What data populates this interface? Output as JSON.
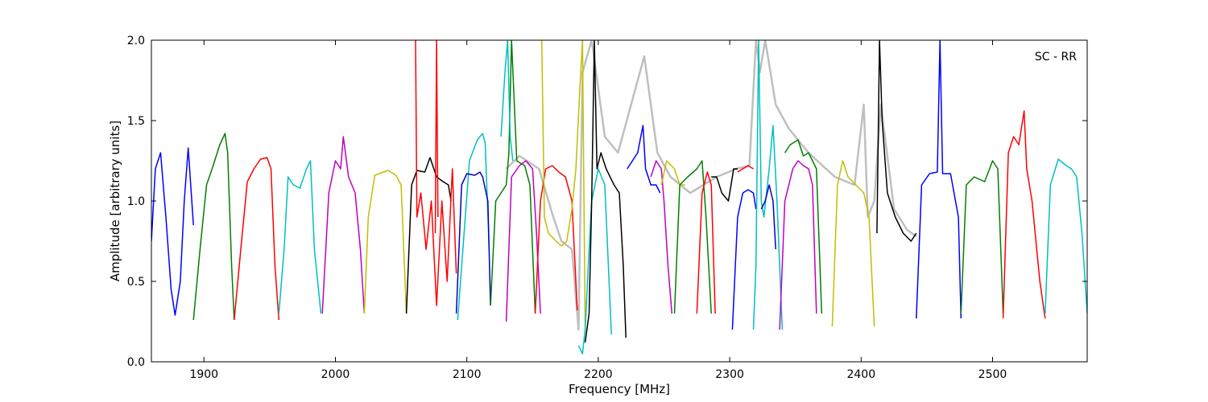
{
  "chart_data": {
    "type": "line",
    "title": "",
    "annotation": "SC - RR",
    "xlabel": "Frequency [MHz]",
    "ylabel": "Amplitude [arbitrary units]",
    "xlim": [
      1860,
      2572
    ],
    "ylim": [
      0.0,
      2.0
    ],
    "xticks": [
      1900,
      2000,
      2100,
      2200,
      2300,
      2400,
      2500
    ],
    "xtick_labels": [
      "1900",
      "2000",
      "2100",
      "2200",
      "2300",
      "2400",
      "2500"
    ],
    "yticks": [
      0.0,
      0.5,
      1.0,
      1.5,
      2.0
    ],
    "ytick_labels": [
      "0.0",
      "0.5",
      "1.0",
      "1.5",
      "2.0"
    ],
    "grid": false,
    "background_series": {
      "color": "#bfbfbf",
      "x": [
        2130,
        2140,
        2155,
        2165,
        2172,
        2180,
        2185,
        2188,
        2195,
        2205,
        2215,
        2225,
        2235,
        2245,
        2255,
        2270,
        2290,
        2305,
        2315,
        2320,
        2323,
        2327,
        2335,
        2345,
        2360,
        2380,
        2395,
        2402,
        2405,
        2410,
        2415,
        2425,
        2435,
        2442
      ],
      "y": [
        1.2,
        1.28,
        1.2,
        0.92,
        0.75,
        0.7,
        0.2,
        1.8,
        2.0,
        1.4,
        1.3,
        1.6,
        1.9,
        1.3,
        1.15,
        1.05,
        1.15,
        1.2,
        1.22,
        2.0,
        1.8,
        2.0,
        1.6,
        1.45,
        1.3,
        1.15,
        1.1,
        1.6,
        0.9,
        1.0,
        1.6,
        0.95,
        0.82,
        0.78
      ]
    },
    "series": [
      {
        "color": "#0000ff",
        "x": [
          1860,
          1863,
          1867,
          1871,
          1875,
          1878,
          1882,
          1885,
          1888,
          1892
        ],
        "y": [
          0.75,
          1.2,
          1.3,
          0.9,
          0.45,
          0.29,
          0.5,
          1.0,
          1.33,
          0.85
        ]
      },
      {
        "color": "#007f00",
        "x": [
          1892,
          1897,
          1902,
          1907,
          1912,
          1916,
          1918,
          1921,
          1923
        ],
        "y": [
          0.26,
          0.7,
          1.1,
          1.22,
          1.35,
          1.42,
          1.3,
          0.6,
          0.26
        ]
      },
      {
        "color": "#ff0000",
        "x": [
          1923,
          1928,
          1933,
          1938,
          1943,
          1948,
          1951,
          1954,
          1957
        ],
        "y": [
          0.26,
          0.7,
          1.12,
          1.2,
          1.26,
          1.27,
          1.2,
          0.6,
          0.26
        ]
      },
      {
        "color": "#00bfbf",
        "x": [
          1957,
          1961,
          1964,
          1968,
          1973,
          1978,
          1981,
          1984,
          1989
        ],
        "y": [
          0.3,
          0.7,
          1.15,
          1.1,
          1.08,
          1.2,
          1.25,
          0.7,
          0.3
        ]
      },
      {
        "color": "#bf00bf",
        "x": [
          1990,
          1995,
          2000,
          2004,
          2006,
          2010,
          2015,
          2019,
          2022
        ],
        "y": [
          0.3,
          1.05,
          1.25,
          1.2,
          1.4,
          1.15,
          1.05,
          0.7,
          0.3
        ]
      },
      {
        "color": "#bfbf00",
        "x": [
          2022,
          2025,
          2030,
          2040,
          2046,
          2050,
          2052,
          2054
        ],
        "y": [
          0.3,
          0.9,
          1.16,
          1.19,
          1.16,
          1.1,
          0.7,
          0.3
        ]
      },
      {
        "color": "#000000",
        "x": [
          2054,
          2058,
          2062,
          2068,
          2072,
          2077,
          2082,
          2086,
          2088
        ],
        "y": [
          0.3,
          1.1,
          1.19,
          1.18,
          1.27,
          1.15,
          1.12,
          1.1,
          1.0
        ]
      },
      {
        "color": "#ff0000",
        "x": [
          2061,
          2062,
          2065,
          2069,
          2073,
          2077,
          2081,
          2085,
          2089,
          2092
        ],
        "y": [
          2.0,
          0.9,
          1.05,
          0.7,
          1.0,
          0.35,
          1.0,
          0.5,
          1.2,
          0.55
        ]
      },
      {
        "color": "#ff0000",
        "x": [
          2076,
          2077,
          2078
        ],
        "y": [
          0.8,
          2.0,
          0.9
        ]
      },
      {
        "color": "#00bfbf",
        "x": [
          2093,
          2097,
          2102,
          2108,
          2112,
          2114,
          2117
        ],
        "y": [
          0.26,
          0.7,
          1.25,
          1.38,
          1.42,
          1.36,
          0.7
        ]
      },
      {
        "color": "#0000bf",
        "x": [
          2092,
          2096,
          2100,
          2106,
          2110,
          2112,
          2116,
          2118
        ],
        "y": [
          0.3,
          1.1,
          1.17,
          1.16,
          1.18,
          1.15,
          1.0,
          0.35
        ]
      },
      {
        "color": "#007f00",
        "x": [
          2118,
          2122,
          2126,
          2130,
          2132,
          2134,
          2138,
          2144,
          2148,
          2152
        ],
        "y": [
          0.35,
          1.0,
          1.05,
          1.1,
          1.3,
          2.0,
          1.25,
          1.22,
          1.1,
          0.3
        ]
      },
      {
        "color": "#00bfbf",
        "x": [
          2126,
          2129,
          2131,
          2133,
          2135
        ],
        "y": [
          1.4,
          1.8,
          2.0,
          1.4,
          1.25
        ]
      },
      {
        "color": "#bf00bf",
        "x": [
          2130,
          2134,
          2140,
          2145,
          2150,
          2153,
          2156
        ],
        "y": [
          0.25,
          1.15,
          1.22,
          1.25,
          1.2,
          0.8,
          0.3
        ]
      },
      {
        "color": "#ff0000",
        "x": [
          2152,
          2156,
          2160,
          2165,
          2170,
          2175,
          2180,
          2184
        ],
        "y": [
          0.3,
          1.0,
          1.2,
          1.22,
          1.18,
          1.15,
          1.0,
          0.32
        ]
      },
      {
        "color": "#bfbf00",
        "x": [
          2157,
          2159,
          2162,
          2168,
          2172,
          2176,
          2180,
          2183,
          2186,
          2188,
          2190
        ],
        "y": [
          2.0,
          0.9,
          0.8,
          0.75,
          0.72,
          0.75,
          0.95,
          1.2,
          1.7,
          2.0,
          0.2
        ]
      },
      {
        "color": "#00bfbf",
        "x": [
          2185,
          2188,
          2190,
          2193,
          2195,
          2200,
          2205,
          2210
        ],
        "y": [
          0.1,
          0.05,
          0.2,
          0.7,
          1.0,
          1.2,
          1.1,
          0.17
        ]
      },
      {
        "color": "#000000",
        "x": [
          2190,
          2193,
          2195,
          2197,
          2199,
          2202,
          2206,
          2212,
          2216,
          2219,
          2221
        ],
        "y": [
          0.12,
          0.3,
          1.0,
          2.0,
          1.2,
          1.3,
          1.2,
          1.1,
          1.05,
          0.6,
          0.15
        ]
      },
      {
        "color": "#0000ff",
        "x": [
          2222,
          2226,
          2230,
          2234,
          2236,
          2240,
          2244,
          2247
        ],
        "y": [
          1.2,
          1.25,
          1.3,
          1.47,
          1.2,
          1.1,
          1.1,
          1.05
        ]
      },
      {
        "color": "#bf00bf",
        "x": [
          2240,
          2244,
          2248,
          2250,
          2253,
          2256
        ],
        "y": [
          1.15,
          1.25,
          1.2,
          1.0,
          0.6,
          0.3
        ]
      },
      {
        "color": "#bfbf00",
        "x": [
          2248,
          2252,
          2258,
          2262,
          2266
        ],
        "y": [
          1.1,
          1.25,
          1.2,
          1.1,
          1.1
        ]
      },
      {
        "color": "#007f00",
        "x": [
          2258,
          2262,
          2268,
          2275,
          2279,
          2282,
          2286
        ],
        "y": [
          0.3,
          1.1,
          1.15,
          1.2,
          1.25,
          0.9,
          0.3
        ]
      },
      {
        "color": "#ff0000",
        "x": [
          2275,
          2279,
          2283,
          2286,
          2289
        ],
        "y": [
          0.3,
          1.05,
          1.18,
          1.1,
          0.3
        ]
      },
      {
        "color": "#000000",
        "x": [
          2286,
          2290,
          2294,
          2299,
          2303,
          2306
        ],
        "y": [
          1.15,
          1.15,
          1.05,
          1.0,
          1.2,
          1.2
        ]
      },
      {
        "color": "#0000ff",
        "x": [
          2302,
          2306,
          2310,
          2314,
          2318,
          2320
        ],
        "y": [
          0.2,
          0.9,
          1.05,
          1.07,
          1.05,
          0.95
        ]
      },
      {
        "color": "#ff0000",
        "x": [
          2306,
          2310,
          2314,
          2318
        ],
        "y": [
          1.18,
          1.2,
          1.22,
          1.2
        ]
      },
      {
        "color": "#00bfbf",
        "x": [
          2318,
          2320,
          2322,
          2324,
          2326,
          2330,
          2333,
          2336,
          2340
        ],
        "y": [
          0.2,
          0.6,
          2.0,
          1.0,
          0.9,
          1.2,
          1.47,
          1.0,
          0.2
        ]
      },
      {
        "color": "#0000bf",
        "x": [
          2324,
          2327,
          2330,
          2333,
          2335
        ],
        "y": [
          0.95,
          1.0,
          1.1,
          1.0,
          0.7
        ]
      },
      {
        "color": "#bf00bf",
        "x": [
          2338,
          2342,
          2348,
          2352,
          2356,
          2360,
          2363,
          2366
        ],
        "y": [
          0.2,
          1.0,
          1.2,
          1.25,
          1.22,
          1.2,
          1.1,
          0.3
        ]
      },
      {
        "color": "#007f00",
        "x": [
          2342,
          2346,
          2352,
          2356,
          2360,
          2366,
          2370
        ],
        "y": [
          1.3,
          1.35,
          1.38,
          1.28,
          1.3,
          1.2,
          0.3
        ]
      },
      {
        "color": "#bfbf00",
        "x": [
          2378,
          2382,
          2386,
          2390,
          2396,
          2402,
          2406,
          2410
        ],
        "y": [
          0.22,
          1.1,
          1.25,
          1.15,
          1.1,
          1.05,
          0.9,
          0.22
        ]
      },
      {
        "color": "#000000",
        "x": [
          2412,
          2414,
          2416,
          2420,
          2426,
          2432,
          2438,
          2442
        ],
        "y": [
          0.8,
          2.0,
          1.5,
          1.05,
          0.9,
          0.8,
          0.75,
          0.8
        ]
      },
      {
        "color": "#0000ff",
        "x": [
          2442,
          2446,
          2452,
          2458,
          2460,
          2462,
          2468,
          2474,
          2476
        ],
        "y": [
          0.27,
          1.1,
          1.17,
          1.18,
          2.0,
          1.17,
          1.17,
          0.9,
          0.27
        ]
      },
      {
        "color": "#007f00",
        "x": [
          2476,
          2480,
          2486,
          2494,
          2500,
          2504,
          2508
        ],
        "y": [
          0.3,
          1.1,
          1.15,
          1.12,
          1.25,
          1.2,
          0.3
        ]
      },
      {
        "color": "#ff0000",
        "x": [
          2508,
          2512,
          2516,
          2520,
          2524,
          2526,
          2530,
          2536,
          2540
        ],
        "y": [
          0.27,
          1.3,
          1.4,
          1.35,
          1.56,
          1.2,
          1.0,
          0.5,
          0.27
        ]
      },
      {
        "color": "#00bfbf",
        "x": [
          2540,
          2544,
          2550,
          2556,
          2560,
          2564,
          2568,
          2572
        ],
        "y": [
          0.3,
          1.1,
          1.26,
          1.22,
          1.2,
          1.15,
          0.8,
          0.3
        ]
      }
    ]
  }
}
